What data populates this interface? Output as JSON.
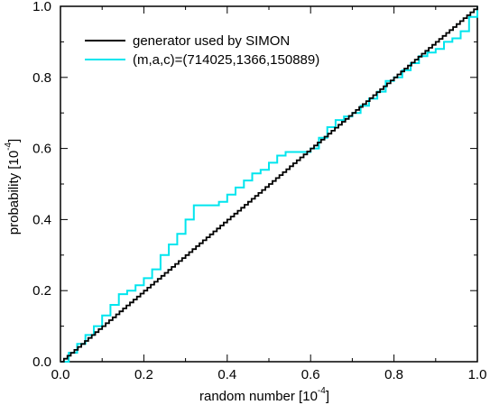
{
  "chart_data": {
    "type": "line",
    "title": "",
    "xlabel": "random number [10",
    "xlabel_exp": "-4",
    "xlabel_close": "]",
    "ylabel": "probability [10",
    "ylabel_exp": "-4",
    "ylabel_close": "]",
    "xlim": [
      0.0,
      1.0
    ],
    "ylim": [
      0.0,
      1.0
    ],
    "x_ticks": [
      0.0,
      0.2,
      0.4,
      0.6,
      0.8,
      1.0
    ],
    "y_ticks": [
      0.0,
      0.2,
      0.4,
      0.6,
      0.8,
      1.0
    ],
    "x_tick_labels": [
      "0.0",
      "0.2",
      "0.4",
      "0.6",
      "0.8",
      "1.0"
    ],
    "y_tick_labels": [
      "0.0",
      "0.2",
      "0.4",
      "0.6",
      "0.8",
      "1.0"
    ],
    "grid": false,
    "legend_position": "top-left",
    "series": [
      {
        "name": "generator used by SIMON",
        "color": "#000000",
        "style": "step",
        "x": [
          0.0,
          0.1,
          0.2,
          0.3,
          0.4,
          0.5,
          0.6,
          0.7,
          0.8,
          0.9,
          1.0
        ],
        "y": [
          0.0,
          0.1,
          0.2,
          0.3,
          0.4,
          0.5,
          0.6,
          0.7,
          0.8,
          0.9,
          1.0
        ]
      },
      {
        "name": "(m,a,c)=(714025,1366,150889)",
        "color": "#00e5ee",
        "style": "step",
        "x": [
          0.0,
          0.02,
          0.04,
          0.06,
          0.08,
          0.1,
          0.12,
          0.14,
          0.16,
          0.18,
          0.2,
          0.22,
          0.24,
          0.26,
          0.28,
          0.3,
          0.32,
          0.34,
          0.36,
          0.38,
          0.4,
          0.42,
          0.44,
          0.46,
          0.48,
          0.5,
          0.52,
          0.54,
          0.56,
          0.58,
          0.6,
          0.62,
          0.64,
          0.66,
          0.68,
          0.7,
          0.72,
          0.74,
          0.76,
          0.78,
          0.8,
          0.82,
          0.84,
          0.86,
          0.88,
          0.9,
          0.92,
          0.94,
          0.96,
          0.98,
          1.0
        ],
        "y": [
          0.0,
          0.025,
          0.05,
          0.075,
          0.1,
          0.13,
          0.16,
          0.19,
          0.2,
          0.215,
          0.235,
          0.26,
          0.3,
          0.33,
          0.36,
          0.4,
          0.44,
          0.44,
          0.44,
          0.45,
          0.47,
          0.49,
          0.51,
          0.53,
          0.54,
          0.56,
          0.58,
          0.59,
          0.59,
          0.59,
          0.6,
          0.63,
          0.66,
          0.68,
          0.69,
          0.7,
          0.72,
          0.74,
          0.76,
          0.79,
          0.8,
          0.82,
          0.84,
          0.86,
          0.87,
          0.88,
          0.9,
          0.91,
          0.93,
          0.97,
          1.0
        ]
      }
    ]
  }
}
